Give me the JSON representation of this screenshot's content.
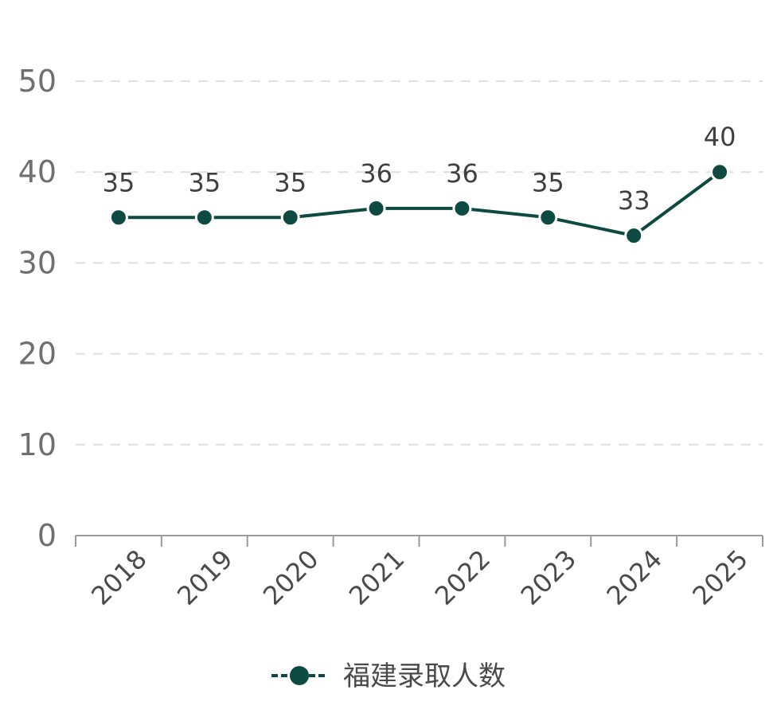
{
  "chart_data": {
    "type": "line",
    "x": [
      "2018",
      "2019",
      "2020",
      "2021",
      "2022",
      "2023",
      "2024",
      "2025"
    ],
    "series": [
      {
        "name": "福建录取人数",
        "values": [
          35,
          35,
          35,
          36,
          36,
          35,
          33,
          40
        ],
        "color": "#0d4a41"
      }
    ],
    "ylim": [
      0,
      50
    ],
    "yticks": [
      "0",
      "10",
      "20",
      "30",
      "40",
      "50"
    ],
    "grid": true,
    "legend_position": "bottom-center",
    "data_labels": true
  }
}
